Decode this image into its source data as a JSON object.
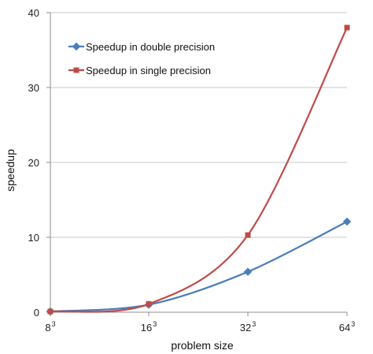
{
  "chart_data": {
    "type": "line",
    "x_ticks": [
      {
        "base": "8",
        "exp": "3"
      },
      {
        "base": "16",
        "exp": "3"
      },
      {
        "base": "32",
        "exp": "3"
      },
      {
        "base": "64",
        "exp": "3"
      }
    ],
    "xlabel": "problem size",
    "ylabel": "speedup",
    "ylim": [
      0,
      40
    ],
    "y_ticks": [
      0,
      10,
      20,
      30,
      40
    ],
    "grid": "horizontal",
    "legend_position": "top-left",
    "series": [
      {
        "name": "Speedup in double precision",
        "color": "#4a7ebb",
        "marker": "diamond",
        "values": [
          0.1,
          1.0,
          5.4,
          12.1
        ]
      },
      {
        "name": "Speedup in single precision",
        "color": "#be4b48",
        "marker": "square",
        "values": [
          0.1,
          1.1,
          10.3,
          38.0
        ]
      }
    ]
  }
}
